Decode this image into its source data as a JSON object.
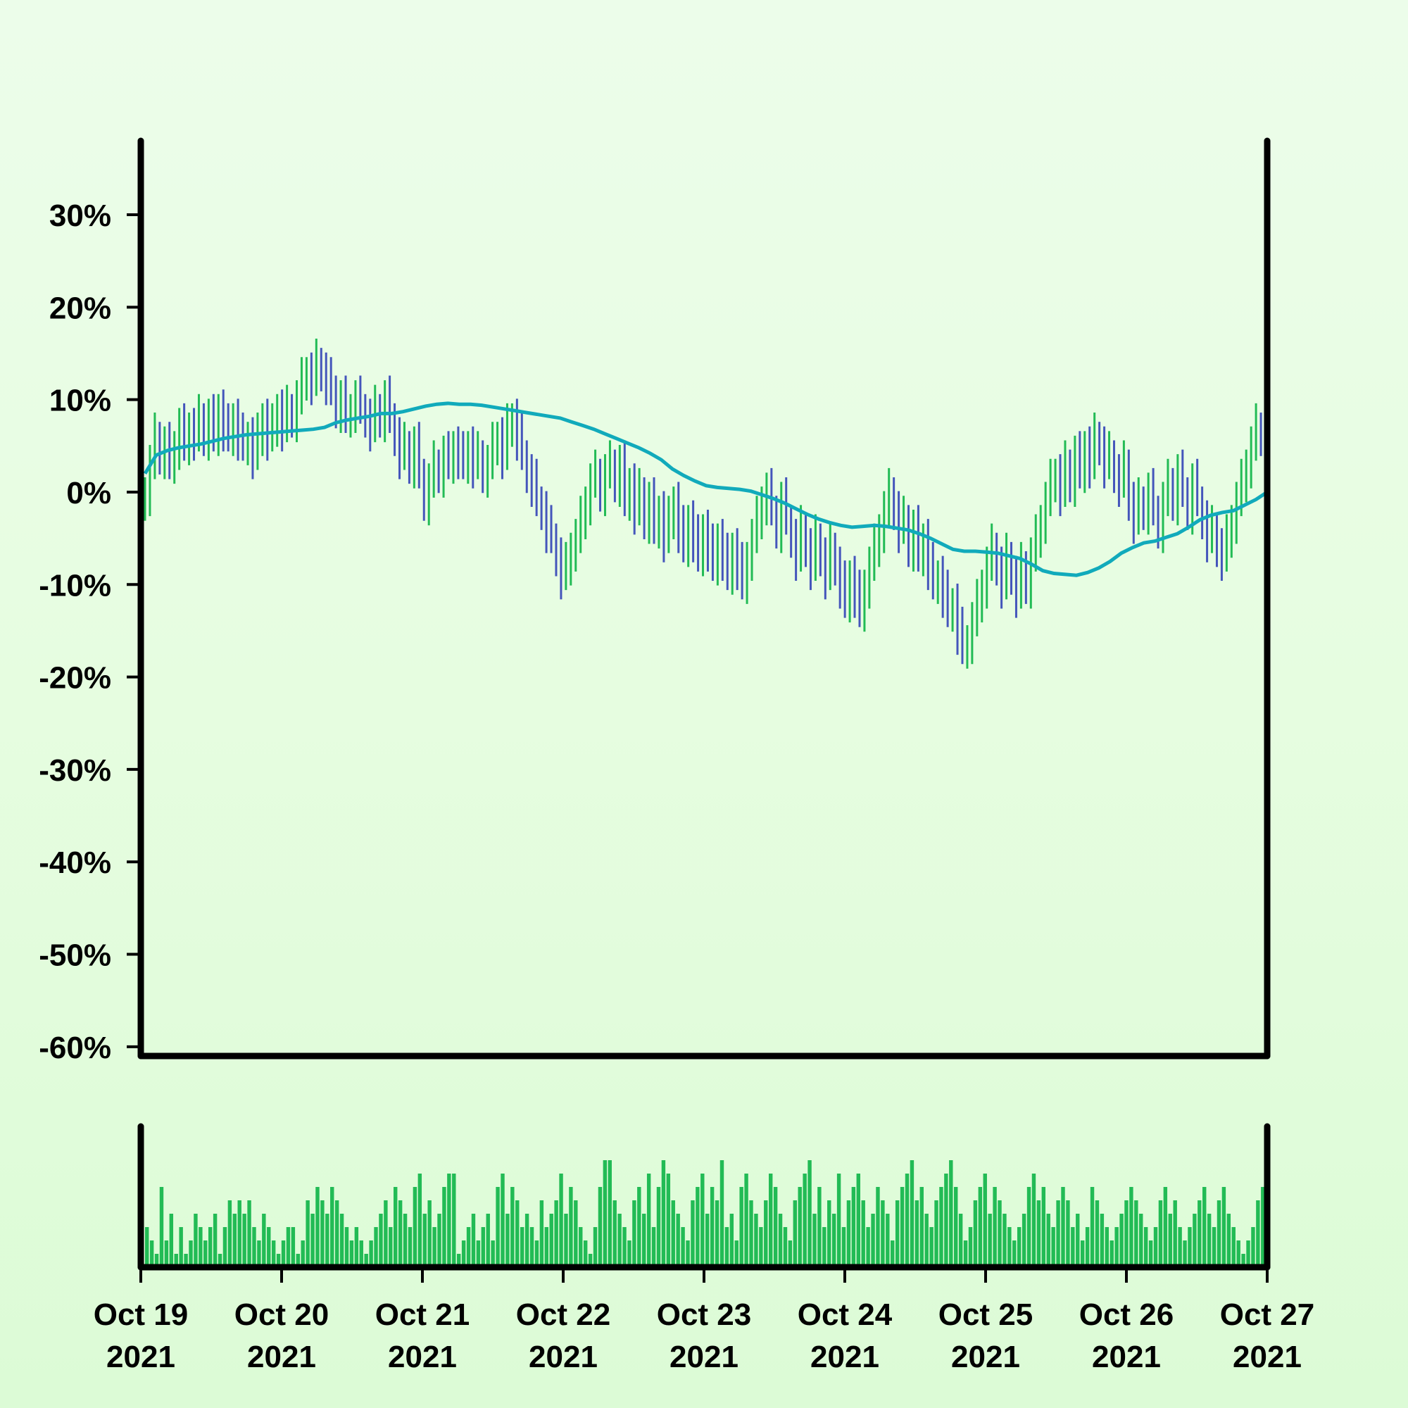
{
  "chart_data": {
    "type": "ohlc",
    "title": "",
    "xlabel": "",
    "ylabel": "",
    "ylim": [
      -61,
      38
    ],
    "grid": false,
    "y_ticks": [
      "30%",
      "20%",
      "10%",
      "0%",
      "-10%",
      "-20%",
      "-30%",
      "-40%",
      "-50%",
      "-60%"
    ],
    "y_tick_values": [
      30,
      20,
      10,
      0,
      -10,
      -20,
      -30,
      -40,
      -50,
      -60
    ],
    "x_ticks": [
      {
        "line1": "Oct 19",
        "line2": "2021",
        "date": "2021-10-19"
      },
      {
        "line1": "Oct 20",
        "line2": "2021",
        "date": "2021-10-20"
      },
      {
        "line1": "Oct 21",
        "line2": "2021",
        "date": "2021-10-21"
      },
      {
        "line1": "Oct 22",
        "line2": "2021",
        "date": "2021-10-22"
      },
      {
        "line1": "Oct 23",
        "line2": "2021",
        "date": "2021-10-23"
      },
      {
        "line1": "Oct 24",
        "line2": "2021",
        "date": "2021-10-24"
      },
      {
        "line1": "Oct 25",
        "line2": "2021",
        "date": "2021-10-25"
      },
      {
        "line1": "Oct 26",
        "line2": "2021",
        "date": "2021-10-26"
      },
      {
        "line1": "Oct 27",
        "line2": "2021",
        "date": "2021-10-27"
      }
    ],
    "colors": {
      "up": "#22bb55",
      "down": "#4455bb",
      "moving_average": "#11aabb",
      "volume": "#22bb55",
      "axis": "#000000"
    },
    "series": [
      {
        "kind": "ohlc_close_path",
        "x_start": "2021-10-19",
        "x_end": "2021-10-27",
        "close": [
          0,
          3,
          6,
          4,
          5,
          3,
          5,
          7,
          5,
          7,
          6,
          8,
          6,
          8,
          6,
          9,
          7,
          6,
          8,
          6,
          5,
          6,
          4,
          6,
          8,
          6,
          7,
          9,
          7,
          9,
          8,
          10,
          12,
          13,
          12,
          14,
          13,
          12,
          11,
          9,
          10,
          8,
          9,
          10,
          9,
          8,
          7,
          9,
          8,
          10,
          8,
          6,
          4,
          5,
          3,
          5,
          2,
          -1,
          1,
          3,
          2,
          4,
          3,
          5,
          4,
          3,
          5,
          3,
          4,
          2,
          3,
          5,
          6,
          4,
          7,
          8,
          6,
          4,
          2,
          1,
          -1,
          -2,
          -4,
          -5,
          -7,
          -9,
          -8,
          -6,
          -5,
          -3,
          -1,
          1,
          2,
          0,
          2,
          3,
          1,
          3,
          -1,
          1,
          -2,
          0,
          -3,
          -1,
          -4,
          -2,
          -5,
          -3,
          -1,
          -4,
          -6,
          -3,
          -5,
          -7,
          -4,
          -6,
          -8,
          -5,
          -7,
          -9,
          -6,
          -8,
          -10,
          -7,
          -5,
          -3,
          -1,
          0,
          -2,
          -4,
          -1,
          -3,
          -5,
          -7,
          -4,
          -6,
          -8,
          -5,
          -7,
          -9,
          -6,
          -8,
          -10,
          -12,
          -9,
          -11,
          -13,
          -10,
          -8,
          -6,
          -4,
          -2,
          0,
          -2,
          -4,
          -3,
          -6,
          -4,
          -7,
          -5,
          -8,
          -10,
          -9,
          -11,
          -13,
          -12,
          -15,
          -17,
          -16,
          -14,
          -12,
          -10,
          -8,
          -6,
          -8,
          -10,
          -7,
          -9,
          -11,
          -8,
          -10,
          -7,
          -5,
          -3,
          -1,
          1,
          2,
          0,
          3,
          1,
          4,
          2,
          5,
          3,
          6,
          5,
          3,
          4,
          2,
          1,
          3,
          -1,
          -3,
          -1,
          -2,
          0,
          -2,
          -4,
          -1,
          1,
          -1,
          2,
          0,
          -2,
          1,
          -1,
          -3,
          -5,
          -4,
          -6,
          -7,
          -5,
          -3,
          -1,
          1,
          3,
          5,
          7,
          6
        ],
        "moving_average": [
          2,
          4,
          4.5,
          4.8,
          5,
          5.2,
          5.5,
          5.8,
          6,
          6.2,
          6.3,
          6.4,
          6.5,
          6.6,
          6.7,
          6.8,
          7,
          7.5,
          7.8,
          8,
          8.2,
          8.5,
          8.5,
          8.7,
          9,
          9.3,
          9.5,
          9.6,
          9.5,
          9.5,
          9.4,
          9.2,
          9,
          8.8,
          8.6,
          8.4,
          8.2,
          8,
          7.6,
          7.2,
          6.8,
          6.3,
          5.8,
          5.3,
          4.8,
          4.2,
          3.5,
          2.5,
          1.8,
          1.2,
          0.7,
          0.5,
          0.4,
          0.3,
          0.1,
          -0.3,
          -0.7,
          -1.2,
          -1.8,
          -2.4,
          -2.9,
          -3.3,
          -3.6,
          -3.8,
          -3.7,
          -3.6,
          -3.7,
          -3.9,
          -4.1,
          -4.5,
          -5,
          -5.6,
          -6.2,
          -6.4,
          -6.4,
          -6.5,
          -6.6,
          -6.9,
          -7.2,
          -7.8,
          -8.5,
          -8.8,
          -8.9,
          -9,
          -8.7,
          -8.2,
          -7.5,
          -6.6,
          -6,
          -5.5,
          -5.3,
          -4.9,
          -4.5,
          -3.8,
          -3,
          -2.5,
          -2.2,
          -2,
          -1.4,
          -0.8,
          0
        ]
      }
    ],
    "volume_ylim": [
      0,
      10
    ],
    "volume": [
      3,
      2,
      1,
      6,
      2,
      4,
      1,
      3,
      1,
      2,
      4,
      3,
      2,
      3,
      4,
      1,
      3,
      5,
      4,
      5,
      4,
      5,
      3,
      2,
      4,
      3,
      2,
      1,
      2,
      3,
      3,
      1,
      2,
      5,
      4,
      6,
      5,
      4,
      6,
      5,
      4,
      3,
      2,
      3,
      2,
      1,
      2,
      3,
      4,
      5,
      3,
      6,
      5,
      4,
      3,
      6,
      7,
      4,
      5,
      3,
      4,
      6,
      7,
      7,
      1,
      2,
      3,
      4,
      2,
      3,
      4,
      2,
      6,
      7,
      4,
      6,
      5,
      3,
      4,
      3,
      2,
      5,
      3,
      4,
      5,
      7,
      4,
      6,
      5,
      3,
      2,
      1,
      3,
      6,
      8,
      8,
      5,
      4,
      3,
      2,
      5,
      6,
      4,
      7,
      3,
      6,
      8,
      7,
      5,
      4,
      3,
      2,
      5,
      6,
      7,
      4,
      6,
      5,
      8,
      3,
      4,
      2,
      6,
      7,
      5,
      4,
      3,
      5,
      7,
      6,
      4,
      3,
      2,
      5,
      6,
      7,
      8,
      4,
      6,
      3,
      5,
      4,
      7,
      3,
      5,
      6,
      7,
      5,
      3,
      4,
      6,
      5,
      4,
      2,
      5,
      6,
      7,
      8,
      5,
      6,
      4,
      3,
      5,
      6,
      7,
      8,
      6,
      4,
      2,
      3,
      5,
      6,
      7,
      4,
      6,
      5,
      4,
      3,
      2,
      3,
      4,
      6,
      7,
      5,
      6,
      4,
      3,
      5,
      6,
      5,
      3,
      4,
      2,
      3,
      6,
      5,
      4,
      3,
      2,
      3,
      4,
      5,
      6,
      5,
      4,
      3,
      2,
      3,
      5,
      6,
      4,
      5,
      3,
      2,
      3,
      4,
      5,
      6,
      4,
      3,
      5,
      6,
      4,
      3,
      2,
      1,
      2,
      3,
      5,
      6
    ]
  }
}
